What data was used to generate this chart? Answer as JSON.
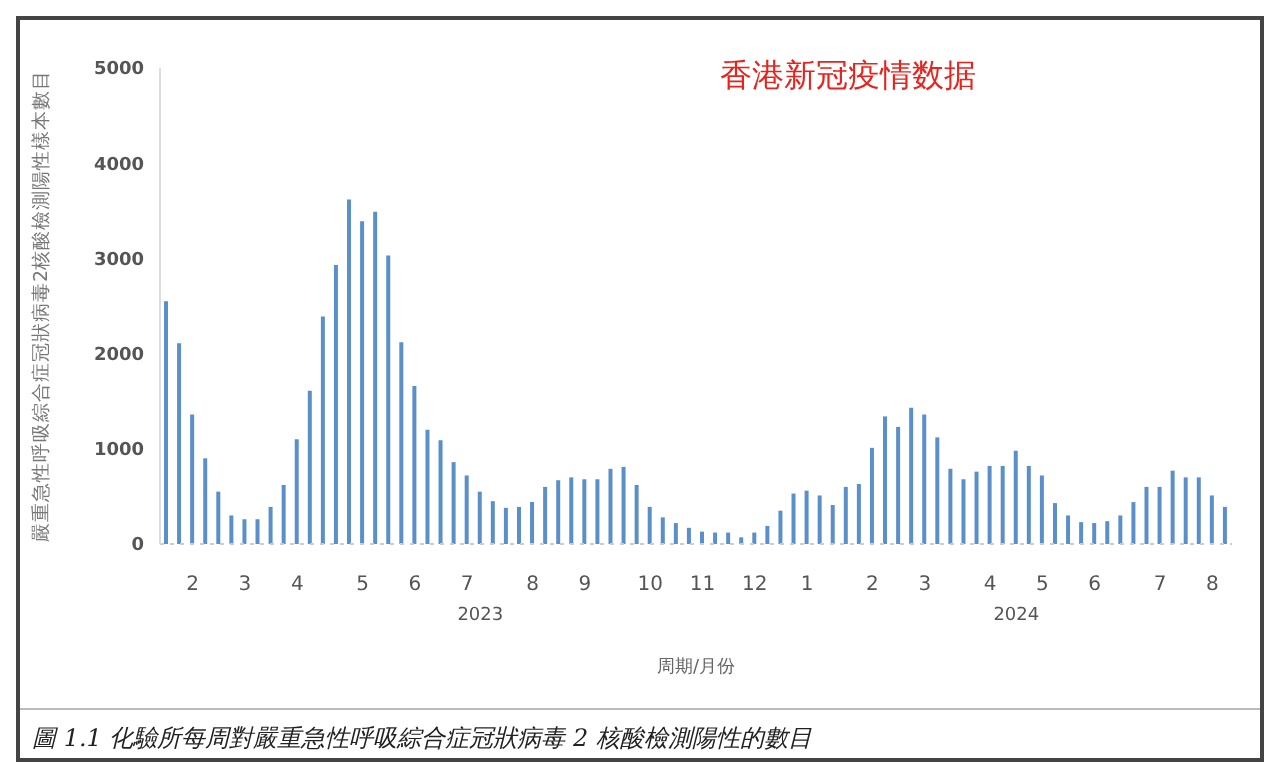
{
  "chart_data": {
    "type": "bar",
    "title": "香港新冠疫情数据",
    "ylabel": "嚴重急性呼吸綜合症冠狀病毒2核酸檢測陽性樣本數目",
    "xlabel": "周期/月份",
    "categories": [
      null,
      null,
      "2",
      null,
      null,
      null,
      "3",
      null,
      null,
      null,
      "4",
      null,
      null,
      null,
      null,
      "5",
      null,
      null,
      null,
      "6",
      null,
      null,
      null,
      "7",
      null,
      null,
      null,
      null,
      "8",
      null,
      null,
      null,
      "9",
      null,
      null,
      null,
      null,
      "10",
      null,
      null,
      null,
      "11",
      null,
      null,
      null,
      "12",
      null,
      null,
      null,
      "1",
      null,
      null,
      null,
      null,
      "2",
      null,
      null,
      null,
      "3",
      null,
      null,
      null,
      null,
      "4",
      null,
      null,
      null,
      "5",
      null,
      null,
      null,
      "6",
      null,
      null,
      null,
      null,
      "7",
      null,
      null,
      null,
      "8",
      null
    ],
    "series": [
      {
        "color": "#5b8fc9",
        "values": [
          2550,
          2110,
          1360,
          900,
          550,
          300,
          260,
          260,
          390,
          620,
          1100,
          1610,
          2390,
          2930,
          3620,
          3390,
          3490,
          3030,
          2120,
          1660,
          1200,
          1090,
          860,
          720,
          550,
          450,
          380,
          390,
          440,
          600,
          670,
          700,
          680,
          680,
          790,
          810,
          620,
          390,
          280,
          220,
          170,
          130,
          120,
          120,
          70,
          120,
          190,
          350,
          530,
          560,
          510,
          410,
          600,
          630,
          1010,
          1340,
          1230,
          1430,
          1360,
          1120,
          790,
          680,
          760,
          820,
          820,
          980,
          820,
          720,
          430,
          300,
          230,
          220,
          240,
          300,
          440,
          600,
          600,
          770,
          700,
          700,
          510,
          390
        ]
      }
    ],
    "ylim": [
      0,
      5000
    ],
    "yticks": [
      0,
      1000,
      2000,
      3000,
      4000,
      5000
    ],
    "grid": false,
    "legend": false,
    "annotations": [
      "2023",
      "2024",
      "圖 1.1 化驗所每周對嚴重急性呼吸綜合症冠狀病毒 2 核酸檢測陽性的數目"
    ]
  }
}
